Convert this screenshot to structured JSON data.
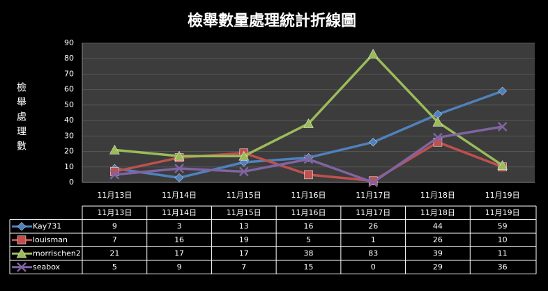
{
  "chart_data": {
    "type": "line",
    "title": "檢舉數量處理統計折線圖",
    "y_label": "檢舉處理數",
    "categories": [
      "11月13日",
      "11月14日",
      "11月15日",
      "11月16日",
      "11月17日",
      "11月18日",
      "11月19日"
    ],
    "series": [
      {
        "name": "Kay731",
        "color": "#4f81bd",
        "values": [
          9,
          3,
          13,
          16,
          26,
          44,
          59
        ]
      },
      {
        "name": "louisman",
        "color": "#c0504d",
        "values": [
          7,
          16,
          19,
          5,
          1,
          26,
          10
        ]
      },
      {
        "name": "morrischen2",
        "color": "#9bbb59",
        "values": [
          21,
          17,
          17,
          38,
          83,
          39,
          11
        ]
      },
      {
        "name": "seabox",
        "color": "#8064a2",
        "values": [
          5,
          9,
          7,
          15,
          0,
          29,
          36
        ]
      }
    ],
    "ylim": [
      0,
      90
    ],
    "yticks": [
      0,
      10,
      20,
      30,
      40,
      50,
      60,
      70,
      80,
      90
    ],
    "grid": true,
    "data_table": true
  }
}
